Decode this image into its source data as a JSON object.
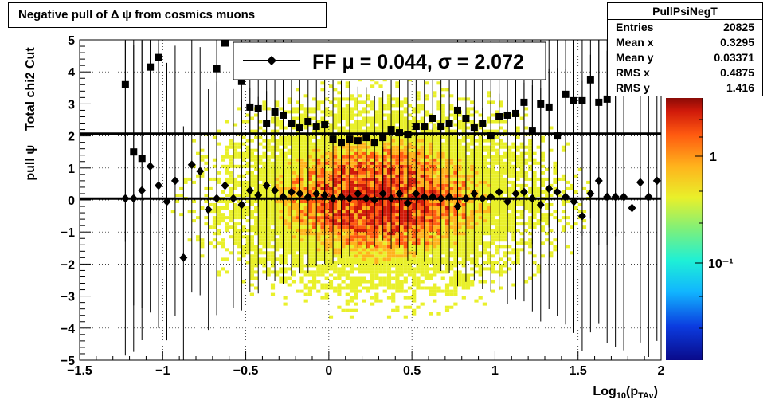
{
  "title": "Negative pull of Δ ψ from cosmics muons",
  "stats": {
    "name": "PullPsiNegT",
    "rows": [
      {
        "label": "Entries",
        "value": "20825"
      },
      {
        "label": "Mean x",
        "value": "0.3295"
      },
      {
        "label": "Mean y",
        "value": "0.03371"
      },
      {
        "label": "RMS x",
        "value": "0.4875"
      },
      {
        "label": "RMS y",
        "value": "1.416"
      }
    ]
  },
  "colors": {
    "markers": "#000000",
    "palette": [
      "#0a0a8a",
      "#0b3ce0",
      "#11b5ff",
      "#1ef0d6",
      "#7ef07a",
      "#e9f02a",
      "#ffb31c",
      "#ff5a10",
      "#d01a0a",
      "#8a0a06"
    ]
  },
  "chart_data": {
    "type": "scatter",
    "title": "Negative pull of Δ ψ from cosmics muons",
    "xlabel": "Log10(pTAv)",
    "ylabel": "pull ψ    Total chi2 Cut",
    "xlim": [
      -1.5,
      2
    ],
    "ylim": [
      -5,
      5
    ],
    "x_ticks": [
      "−1.5",
      "−1",
      "−0.5",
      "0",
      "0.5",
      "1",
      "1.5",
      "2"
    ],
    "x_tick_values": [
      -1.5,
      -1,
      -0.5,
      0,
      0.5,
      1,
      1.5,
      2
    ],
    "y_ticks": [
      "−5",
      "−4",
      "−3",
      "−2",
      "−1",
      "0",
      "1",
      "2",
      "3",
      "4",
      "5"
    ],
    "y_tick_values": [
      -5,
      -4,
      -3,
      -2,
      -1,
      0,
      1,
      2,
      3,
      4,
      5
    ],
    "grid": true,
    "legend": {
      "label": "FF μ =  0.044, σ =   2.072",
      "placement": "top-center"
    },
    "colorbar": {
      "scale": "log",
      "tick_labels": [
        "1",
        "10⁻¹"
      ]
    },
    "fit_lines": [
      0.044,
      2.072
    ],
    "series": [
      {
        "marker": "diamond",
        "x": [
          -1.225,
          -1.175,
          -1.125,
          -1.075,
          -1.025,
          -0.975,
          -0.925,
          -0.875,
          -0.825,
          -0.775,
          -0.725,
          -0.675,
          -0.625,
          -0.575,
          -0.525,
          -0.475,
          -0.425,
          -0.375,
          -0.325,
          -0.275,
          -0.225,
          -0.175,
          -0.125,
          -0.075,
          -0.025,
          0.025,
          0.075,
          0.125,
          0.175,
          0.225,
          0.275,
          0.325,
          0.375,
          0.425,
          0.475,
          0.525,
          0.575,
          0.625,
          0.675,
          0.725,
          0.775,
          0.825,
          0.875,
          0.925,
          0.975,
          1.025,
          1.075,
          1.125,
          1.175,
          1.225,
          1.275,
          1.325,
          1.375,
          1.425,
          1.475,
          1.525,
          1.575,
          1.625,
          1.675,
          1.725,
          1.775,
          1.825,
          1.875,
          1.925,
          1.975
        ],
        "y": [
          0.05,
          0.05,
          0.3,
          1.05,
          0.45,
          -0.05,
          0.6,
          -1.8,
          1.1,
          0.9,
          -0.3,
          0.05,
          0.45,
          0.05,
          -0.15,
          0.3,
          0.15,
          0.45,
          0.3,
          0.1,
          0.25,
          0.2,
          0.1,
          0.2,
          0.15,
          0.05,
          0.1,
          0.05,
          0.2,
          0.05,
          0.0,
          0.2,
          0.05,
          0.2,
          -0.1,
          0.2,
          0.1,
          0.1,
          0.05,
          0.1,
          -0.2,
          0.05,
          0.2,
          0.05,
          0.1,
          0.25,
          -0.05,
          0.2,
          0.25,
          0.05,
          -0.15,
          0.35,
          0.25,
          0.1,
          -0.05,
          -0.5,
          0.2,
          0.6,
          0.1,
          0.1,
          0.1,
          -0.25,
          0.55,
          0.1,
          0.6
        ]
      },
      {
        "marker": "square",
        "x": [
          -1.225,
          -1.175,
          -1.125,
          -1.075,
          -1.025,
          -0.675,
          -0.625,
          -0.525,
          -0.475,
          -0.425,
          -0.375,
          -0.325,
          -0.275,
          -0.225,
          -0.175,
          -0.125,
          -0.075,
          -0.025,
          0.025,
          0.075,
          0.125,
          0.175,
          0.225,
          0.275,
          0.325,
          0.375,
          0.425,
          0.475,
          0.525,
          0.575,
          0.625,
          0.675,
          0.725,
          0.775,
          0.825,
          0.875,
          0.925,
          0.975,
          1.025,
          1.075,
          1.125,
          1.175,
          1.225,
          1.275,
          1.325,
          1.375,
          1.425,
          1.475,
          1.525,
          1.575,
          1.625,
          1.675,
          1.725
        ],
        "y": [
          3.6,
          1.5,
          1.3,
          4.15,
          4.45,
          4.1,
          4.9,
          3.7,
          2.9,
          2.85,
          2.4,
          2.75,
          2.65,
          2.4,
          2.25,
          2.45,
          2.3,
          2.35,
          1.9,
          1.8,
          1.9,
          1.85,
          1.95,
          1.8,
          1.95,
          2.2,
          2.1,
          2.05,
          2.3,
          2.3,
          2.55,
          2.3,
          2.4,
          2.8,
          2.55,
          2.25,
          2.4,
          2.0,
          2.6,
          2.65,
          2.7,
          3.05,
          2.15,
          3.0,
          2.9,
          2.0,
          3.3,
          3.1,
          3.1,
          3.75,
          3.05,
          3.15,
          3.55
        ]
      }
    ]
  }
}
